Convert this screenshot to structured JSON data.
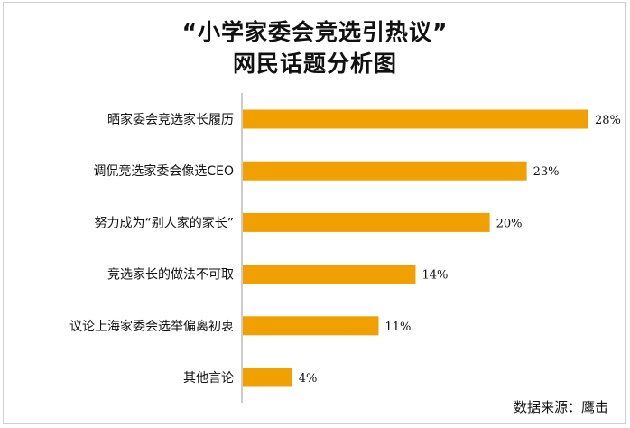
{
  "chart_data": {
    "type": "bar",
    "orientation": "horizontal",
    "title": "“小学家委会竞选引热议”",
    "subtitle": "网民话题分析图",
    "categories": [
      "晒家委会竞选家长履历",
      "调侃竞选家委会像选CEO",
      "努力成为“别人家的家长”",
      "竞选家长的做法不可取",
      "议论上海家委会选举偏离初衷",
      "其他言论"
    ],
    "values": [
      28,
      23,
      20,
      14,
      11,
      4
    ],
    "value_labels": [
      "28%",
      "23%",
      "20%",
      "14%",
      "11%",
      "4%"
    ],
    "xlim": [
      0,
      28
    ],
    "grid": false,
    "bar_color": "#f0a000",
    "axis_color": "#999999"
  },
  "source": "数据来源：鹰击"
}
